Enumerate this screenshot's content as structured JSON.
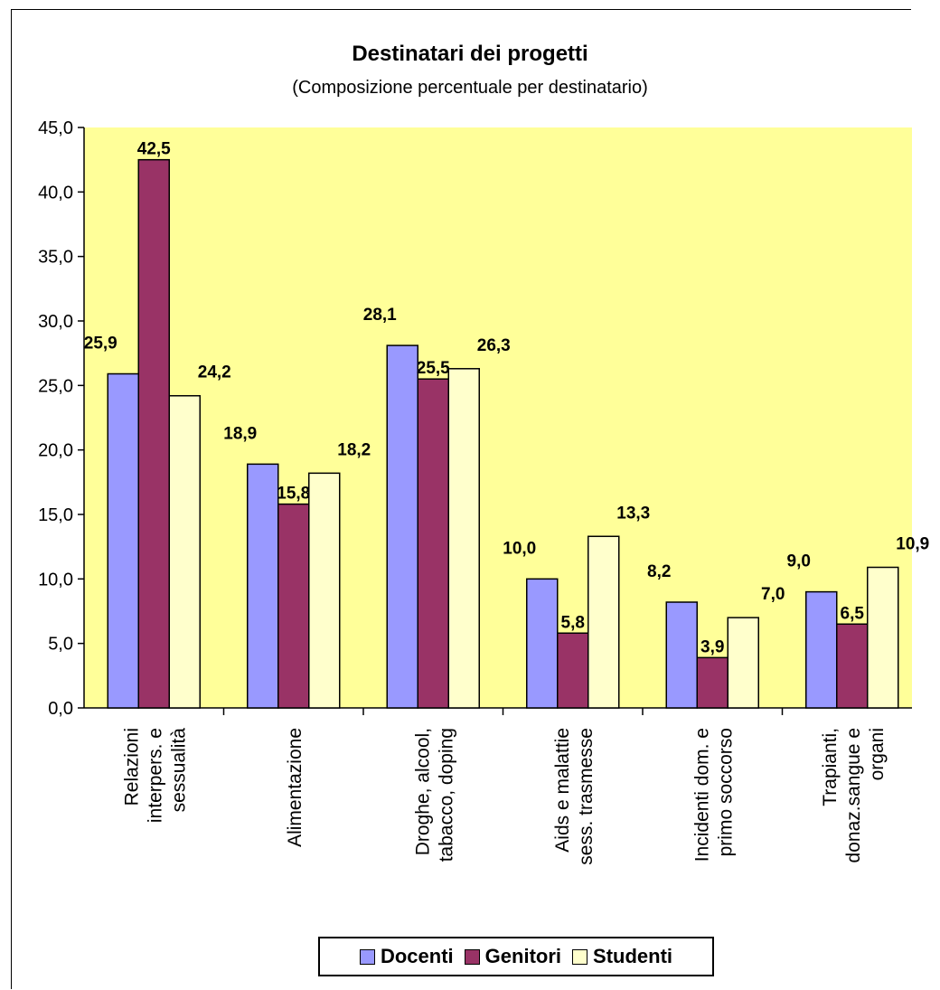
{
  "chart_data": {
    "type": "bar",
    "title": "Destinatari dei progetti",
    "subtitle": "(Composizione percentuale per destinatario)",
    "categories": [
      [
        "Relazioni",
        "interpers. e",
        "sessualità"
      ],
      [
        "Alimentazione"
      ],
      [
        "Droghe, alcool,",
        "tabacco, doping"
      ],
      [
        "Aids e malattie",
        "sess. trasmesse"
      ],
      [
        "Incidenti dom. e",
        "primo soccorso"
      ],
      [
        "Trapianti,",
        "donaz.sangue e",
        "organi"
      ]
    ],
    "series": [
      {
        "name": "Docenti",
        "color": "#9999ff",
        "values": [
          25.9,
          18.9,
          28.1,
          10.0,
          8.2,
          9.0
        ],
        "labels": [
          "25,9",
          "18,9",
          "28,1",
          "10,0",
          "8,2",
          "9,0"
        ]
      },
      {
        "name": "Genitori",
        "color": "#993366",
        "values": [
          42.5,
          15.8,
          25.5,
          5.8,
          3.9,
          6.5
        ],
        "labels": [
          "42,5",
          "15,8",
          "25,5",
          "5,8",
          "3,9",
          "6,5"
        ]
      },
      {
        "name": "Studenti",
        "color": "#ffffcc",
        "values": [
          24.2,
          18.2,
          26.3,
          13.3,
          7.0,
          10.9
        ],
        "labels": [
          "24,2",
          "18,2",
          "26,3",
          "13,3",
          "7,0",
          "10,9"
        ]
      }
    ],
    "ylim": [
      0,
      45
    ],
    "yticks": [
      0,
      5,
      10,
      15,
      20,
      25,
      30,
      35,
      40,
      45
    ],
    "ytick_labels": [
      "0,0",
      "5,0",
      "10,0",
      "15,0",
      "20,0",
      "25,0",
      "30,0",
      "35,0",
      "40,0",
      "45,0"
    ],
    "plot_background": "#ffff99",
    "legend_position": "bottom"
  }
}
